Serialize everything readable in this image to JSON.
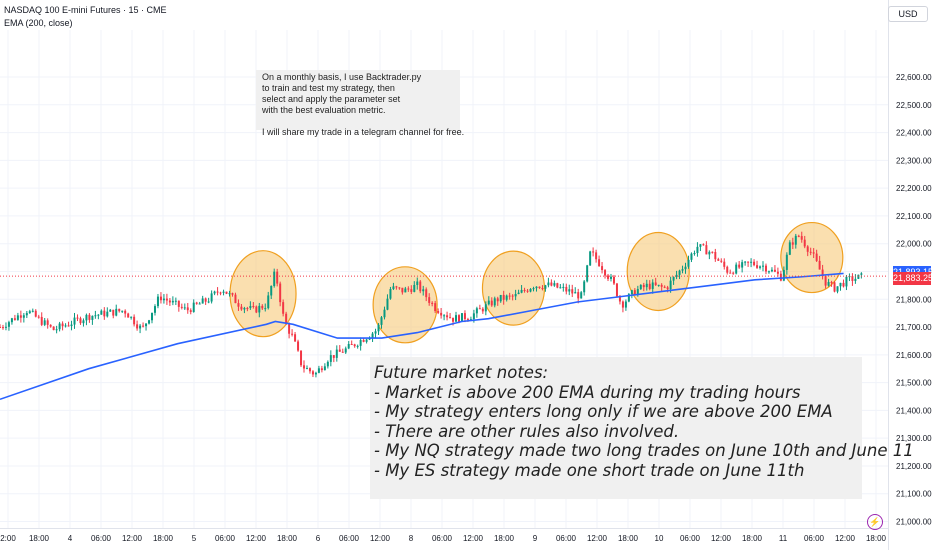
{
  "header": {
    "title": "NASDAQ 100 E-mini Futures · 15 · CME",
    "indicator": "EMA (200, close)",
    "currency": "USD"
  },
  "notes": {
    "top": [
      "On a monthly basis, I use Backtrader.py",
      "to train and test my strategy, then",
      "select and apply the parameter set",
      "with the best evaluation metric.",
      "",
      "I will share my trade in a telegram channel for free."
    ],
    "bottom": [
      "Future market notes:",
      "- Market is above 200 EMA during my trading hours",
      "- My strategy enters long only if we are above 200 EMA",
      "- There are other rules also involved.",
      "- My NQ strategy made two long trades on June 10th and June 11",
      "- My ES strategy made one short trade on June 11th"
    ]
  },
  "price_labels": {
    "ema": "21,893.15",
    "last": "21,883.25"
  },
  "colors": {
    "up": "#089981",
    "down": "#f23645",
    "ema": "#2962ff",
    "highlight_fill": "#f7c97a",
    "highlight_stroke": "#f0a020",
    "grid": "#f0f3fa"
  },
  "chart_data": {
    "type": "candlestick",
    "title": "",
    "ylim": [
      21000,
      22650
    ],
    "y_ticks": [
      "22,600.00",
      "22,500.00",
      "22,400.00",
      "22,300.00",
      "22,200.00",
      "22,100.00",
      "22,000.00",
      "21,900.00",
      "21,800.00",
      "21,700.00",
      "21,600.00",
      "21,500.00",
      "21,400.00",
      "21,300.00",
      "21,200.00",
      "21,100.00",
      "21,000.00"
    ],
    "y_tick_values": [
      22600,
      22500,
      22400,
      22300,
      22200,
      22100,
      22000,
      21900,
      21800,
      21700,
      21600,
      21500,
      21400,
      21300,
      21200,
      21100,
      21000
    ],
    "x_ticks": [
      "2:00",
      "18:00",
      "4",
      "06:00",
      "12:00",
      "18:00",
      "5",
      "06:00",
      "12:00",
      "18:00",
      "6",
      "06:00",
      "12:00",
      "8",
      "06:00",
      "12:00",
      "18:00",
      "9",
      "06:00",
      "12:00",
      "18:00",
      "10",
      "06:00",
      "12:00",
      "18:00",
      "11",
      "06:00",
      "12:00",
      "18:00"
    ],
    "price_path": [
      [
        0,
        21700
      ],
      [
        0.03,
        21760
      ],
      [
        0.06,
        21690
      ],
      [
        0.1,
        21740
      ],
      [
        0.14,
        21760
      ],
      [
        0.16,
        21690
      ],
      [
        0.18,
        21810
      ],
      [
        0.21,
        21760
      ],
      [
        0.235,
        21800
      ],
      [
        0.25,
        21840
      ],
      [
        0.27,
        21780
      ],
      [
        0.285,
        21760
      ],
      [
        0.3,
        21780
      ],
      [
        0.31,
        21900
      ],
      [
        0.32,
        21720
      ],
      [
        0.33,
        21660
      ],
      [
        0.34,
        21560
      ],
      [
        0.355,
        21530
      ],
      [
        0.37,
        21590
      ],
      [
        0.39,
        21620
      ],
      [
        0.41,
        21660
      ],
      [
        0.425,
        21690
      ],
      [
        0.44,
        21840
      ],
      [
        0.455,
        21830
      ],
      [
        0.47,
        21850
      ],
      [
        0.49,
        21770
      ],
      [
        0.51,
        21730
      ],
      [
        0.53,
        21740
      ],
      [
        0.56,
        21800
      ],
      [
        0.58,
        21810
      ],
      [
        0.6,
        21850
      ],
      [
        0.62,
        21850
      ],
      [
        0.64,
        21830
      ],
      [
        0.655,
        21810
      ],
      [
        0.665,
        21970
      ],
      [
        0.675,
        21930
      ],
      [
        0.69,
        21860
      ],
      [
        0.7,
        21780
      ],
      [
        0.715,
        21830
      ],
      [
        0.73,
        21850
      ],
      [
        0.75,
        21840
      ],
      [
        0.77,
        21920
      ],
      [
        0.785,
        21990
      ],
      [
        0.8,
        21970
      ],
      [
        0.82,
        21900
      ],
      [
        0.845,
        21930
      ],
      [
        0.86,
        21920
      ],
      [
        0.88,
        21880
      ],
      [
        0.89,
        22000
      ],
      [
        0.9,
        22030
      ],
      [
        0.915,
        21960
      ],
      [
        0.93,
        21860
      ],
      [
        0.94,
        21840
      ],
      [
        0.955,
        21870
      ],
      [
        0.97,
        21880
      ]
    ],
    "ema_path": [
      [
        0,
        21440
      ],
      [
        0.1,
        21550
      ],
      [
        0.2,
        21640
      ],
      [
        0.3,
        21710
      ],
      [
        0.31,
        21720
      ],
      [
        0.33,
        21710
      ],
      [
        0.38,
        21660
      ],
      [
        0.43,
        21660
      ],
      [
        0.47,
        21680
      ],
      [
        0.52,
        21720
      ],
      [
        0.55,
        21730
      ],
      [
        0.6,
        21760
      ],
      [
        0.65,
        21790
      ],
      [
        0.7,
        21810
      ],
      [
        0.75,
        21830
      ],
      [
        0.8,
        21850
      ],
      [
        0.85,
        21870
      ],
      [
        0.9,
        21880
      ],
      [
        0.95,
        21893
      ]
    ],
    "ema_last": 21893.15,
    "last_price": 21883.25
  }
}
